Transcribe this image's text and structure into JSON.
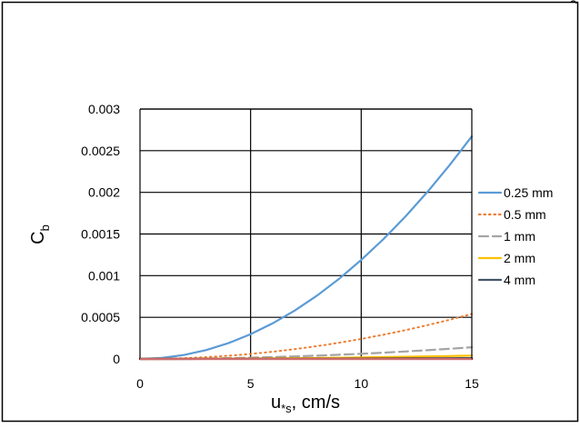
{
  "chart_data": {
    "type": "line",
    "xlabel": "u",
    "xlabel_sub": "*s",
    "xlabel_unit": ", cm/s",
    "ylabel": "C",
    "ylabel_sub": "b",
    "xlim": [
      0,
      15
    ],
    "ylim": [
      0,
      0.003
    ],
    "x_ticks": [
      "0",
      "5",
      "10",
      "15"
    ],
    "y_ticks": [
      "0",
      "0.0005",
      "0.001",
      "0.0015",
      "0.002",
      "0.0025",
      "0.003"
    ],
    "grid": true,
    "legend_position": "right",
    "x": [
      0,
      1,
      2,
      3,
      4,
      5,
      6,
      7,
      8,
      9,
      10,
      11,
      12,
      13,
      14,
      15
    ],
    "series": [
      {
        "name": "0.25 mm",
        "color": "#5b9bd5",
        "dash": "solid",
        "values": [
          0,
          1.2e-05,
          4.8e-05,
          0.000107,
          0.00019,
          0.000297,
          0.000428,
          0.000582,
          0.00076,
          0.000962,
          0.001188,
          0.001437,
          0.00171,
          0.002007,
          0.002328,
          0.002672
        ]
      },
      {
        "name": "0.5 mm",
        "color": "#ed7d31",
        "dash": "dotted",
        "values": [
          0,
          2.4e-06,
          9.6e-06,
          2.16e-05,
          3.84e-05,
          6e-05,
          8.64e-05,
          0.0001176,
          0.0001536,
          0.0001944,
          0.00024,
          0.0002904,
          0.0003456,
          0.0004056,
          0.0004704,
          0.00054
        ]
      },
      {
        "name": "1 mm",
        "color": "#a5a5a5",
        "dash": "dashed",
        "values": [
          0,
          6e-07,
          2.5e-06,
          5.6e-06,
          1e-05,
          1.56e-05,
          2.24e-05,
          3.05e-05,
          3.98e-05,
          5.04e-05,
          6.22e-05,
          7.53e-05,
          8.96e-05,
          0.0001051,
          0.0001219,
          0.00014
        ]
      },
      {
        "name": "2 mm",
        "color": "#ffc000",
        "dash": "solid",
        "values": [
          0,
          2e-07,
          7e-07,
          1.6e-06,
          2.8e-06,
          4.4e-06,
          6.4e-06,
          8.7e-06,
          1.14e-05,
          1.44e-05,
          1.78e-05,
          2.15e-05,
          2.56e-05,
          3e-05,
          3.48e-05,
          4e-05
        ]
      },
      {
        "name": "4 mm",
        "color": "#44546a",
        "dash": "solid",
        "values": [
          0,
          4e-08,
          1.8e-07,
          4e-07,
          7e-07,
          1.1e-06,
          1.6e-06,
          2.2e-06,
          2.8e-06,
          3.6e-06,
          4.4e-06,
          5.4e-06,
          6.4e-06,
          7.5e-06,
          8.7e-06,
          1e-05
        ]
      },
      {
        "name": "",
        "color": "#c00000",
        "dash": "solid",
        "values": [
          0,
          0,
          0,
          0,
          0,
          0,
          0,
          0,
          0,
          0,
          0,
          0,
          0,
          0,
          0,
          0
        ]
      }
    ]
  }
}
